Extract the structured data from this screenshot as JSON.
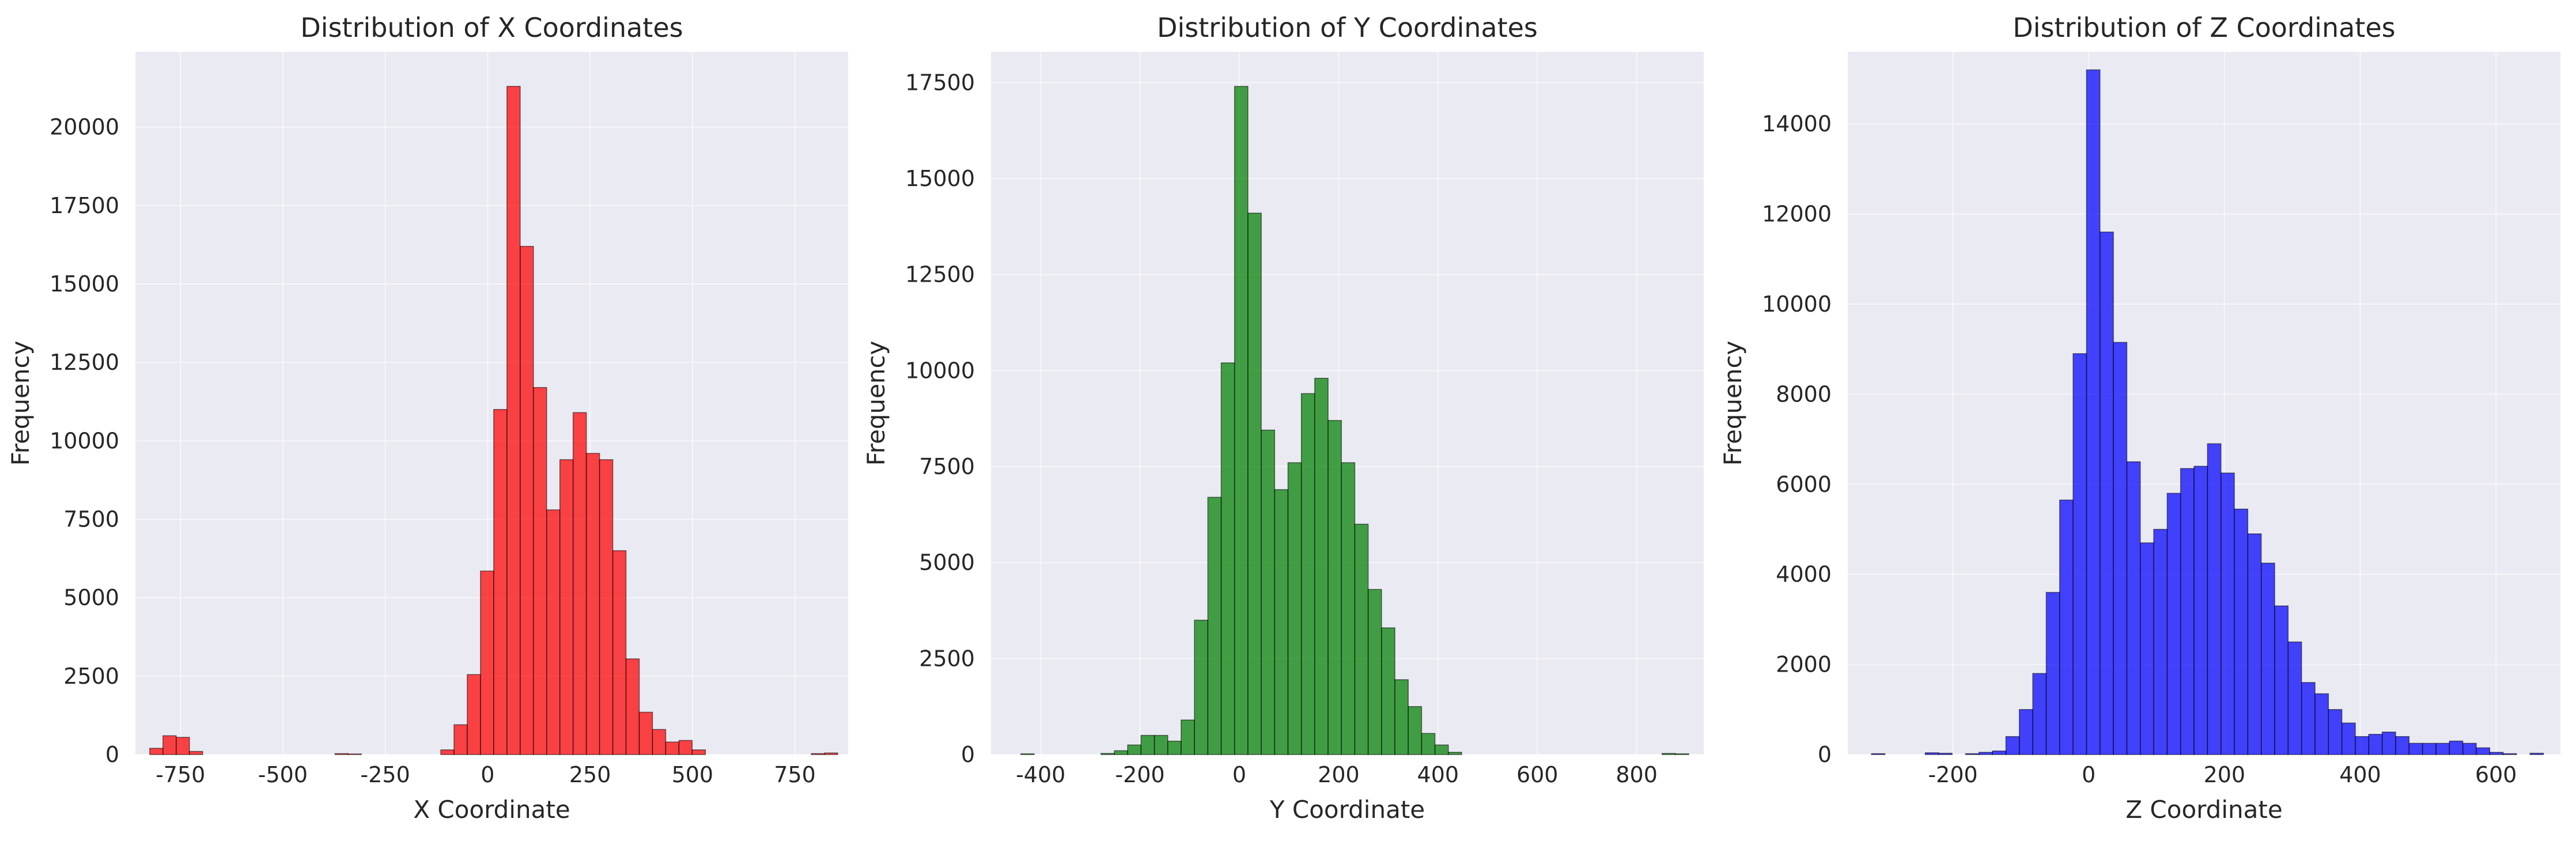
{
  "chart_data": [
    {
      "type": "bar",
      "title": "Distribution of X Coordinates",
      "xlabel": "X Coordinate",
      "ylabel": "Frequency",
      "color": "#ff0000",
      "xlim": [
        -860,
        880
      ],
      "ylim": [
        0,
        22400
      ],
      "xticks": [
        -750,
        -500,
        -250,
        0,
        250,
        500,
        750
      ],
      "yticks": [
        0,
        2500,
        5000,
        7500,
        10000,
        12500,
        15000,
        17500,
        20000
      ],
      "grid": true,
      "bin_edges": [
        -825,
        -792.7,
        -760.4,
        -728.1,
        -695.8,
        -663.5,
        -631.2,
        -598.9,
        -566.6,
        -534.3,
        -502,
        -469.7,
        -437.4,
        -405.1,
        -372.8,
        -340.5,
        -308.2,
        -275.9,
        -243.6,
        -211.3,
        -179,
        -146.7,
        -114.4,
        -82.1,
        -49.8,
        -17.5,
        14.8,
        47.1,
        79.4,
        111.7,
        144,
        176.3,
        208.6,
        240.9,
        273.2,
        305.5,
        337.8,
        370.1,
        402.4,
        434.7,
        467,
        499.3,
        531.6,
        563.9,
        596.2,
        628.5,
        660.8,
        693.1,
        725.4,
        757.7,
        790,
        822.3,
        854.6
      ],
      "values": [
        200,
        600,
        550,
        100,
        0,
        0,
        0,
        0,
        0,
        0,
        0,
        0,
        0,
        0,
        30,
        20,
        0,
        0,
        0,
        0,
        0,
        0,
        150,
        950,
        2550,
        5850,
        11000,
        21300,
        16200,
        11700,
        7800,
        9400,
        10900,
        9600,
        9400,
        6500,
        3050,
        1350,
        800,
        400,
        450,
        150,
        0,
        0,
        0,
        0,
        0,
        0,
        0,
        0,
        30,
        50
      ]
    },
    {
      "type": "bar",
      "title": "Distribution of Y Coordinates",
      "xlabel": "Y Coordinate",
      "ylabel": "Frequency",
      "color": "#008000",
      "xlim": [
        -500,
        935
      ],
      "ylim": [
        0,
        18300
      ],
      "xticks": [
        -400,
        -200,
        0,
        200,
        400,
        600,
        800
      ],
      "yticks": [
        0,
        2500,
        5000,
        7500,
        10000,
        12500,
        15000,
        17500
      ],
      "grid": true,
      "bin_edges": [
        -440,
        -413.1,
        -386.2,
        -359.3,
        -332.4,
        -305.5,
        -278.6,
        -251.7,
        -224.8,
        -197.9,
        -171,
        -144.1,
        -117.2,
        -90.3,
        -63.4,
        -36.5,
        -9.6,
        17.3,
        44.2,
        71.1,
        98,
        124.9,
        151.8,
        178.7,
        205.6,
        232.5,
        259.4,
        286.3,
        313.2,
        340.1,
        367,
        393.9,
        420.8,
        447.7,
        474.6,
        501.5,
        528.4,
        555.3,
        582.2,
        609.1,
        636,
        662.9,
        689.8,
        716.7,
        743.6,
        770.5,
        797.4,
        824.3,
        851.2,
        878.1,
        905
      ],
      "values": [
        20,
        0,
        0,
        0,
        0,
        0,
        30,
        100,
        250,
        500,
        500,
        350,
        900,
        3500,
        6700,
        10200,
        17400,
        14100,
        8450,
        6900,
        7600,
        9400,
        9800,
        8700,
        7600,
        6000,
        4300,
        3300,
        1950,
        1250,
        550,
        250,
        60,
        0,
        0,
        0,
        0,
        0,
        0,
        0,
        0,
        0,
        0,
        0,
        0,
        0,
        0,
        0,
        30,
        20
      ]
    },
    {
      "type": "bar",
      "title": "Distribution of Z Coordinates",
      "xlabel": "Z Coordinate",
      "ylabel": "Frequency",
      "color": "#0000ff",
      "xlim": [
        -355,
        695
      ],
      "ylim": [
        0,
        15600
      ],
      "xticks": [
        -200,
        0,
        200,
        400,
        600
      ],
      "yticks": [
        0,
        2000,
        4000,
        6000,
        8000,
        10000,
        12000,
        14000
      ],
      "grid": true,
      "bin_edges": [
        -320,
        -300.2,
        -280.4,
        -260.6,
        -240.8,
        -221,
        -201.2,
        -181.4,
        -161.6,
        -141.8,
        -122,
        -102.2,
        -82.4,
        -62.6,
        -42.8,
        -23,
        -3.2,
        16.6,
        36.4,
        56.2,
        76,
        95.8,
        115.6,
        135.4,
        155.2,
        175,
        194.8,
        214.6,
        234.4,
        254.2,
        274,
        293.8,
        313.6,
        333.4,
        353.2,
        373,
        392.8,
        412.6,
        432.4,
        452.2,
        472,
        491.8,
        511.6,
        531.4,
        551.2,
        571,
        590.8,
        610.6,
        630.4,
        650.2,
        670
      ],
      "values": [
        20,
        0,
        0,
        0,
        40,
        30,
        0,
        20,
        50,
        80,
        400,
        1000,
        1800,
        3600,
        5650,
        8900,
        15200,
        11600,
        9150,
        6500,
        4700,
        5000,
        5800,
        6350,
        6400,
        6900,
        6250,
        5450,
        4900,
        4250,
        3300,
        2500,
        1600,
        1350,
        1000,
        700,
        400,
        450,
        500,
        400,
        250,
        250,
        250,
        300,
        250,
        150,
        50,
        20,
        0,
        30
      ]
    }
  ]
}
